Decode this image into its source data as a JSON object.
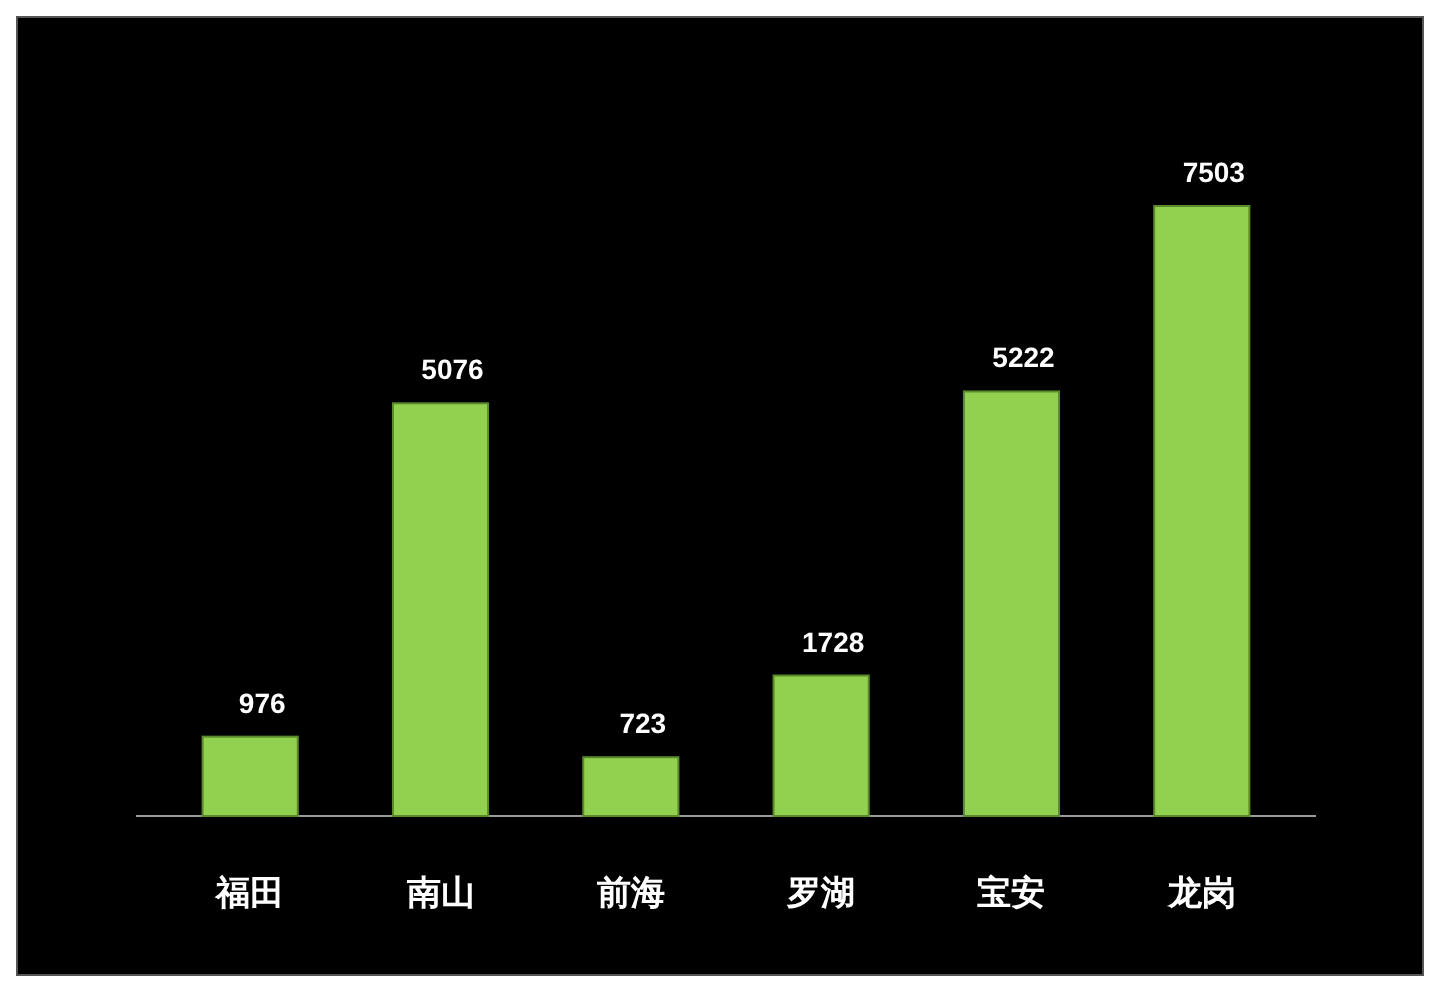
{
  "chart_data": {
    "type": "bar",
    "categories": [
      "福田",
      "南山",
      "前海",
      "罗湖",
      "宝安",
      "龙岗"
    ],
    "values": [
      976,
      5076,
      723,
      1728,
      5222,
      7503
    ],
    "color": "#92d050",
    "data_labels": true
  }
}
